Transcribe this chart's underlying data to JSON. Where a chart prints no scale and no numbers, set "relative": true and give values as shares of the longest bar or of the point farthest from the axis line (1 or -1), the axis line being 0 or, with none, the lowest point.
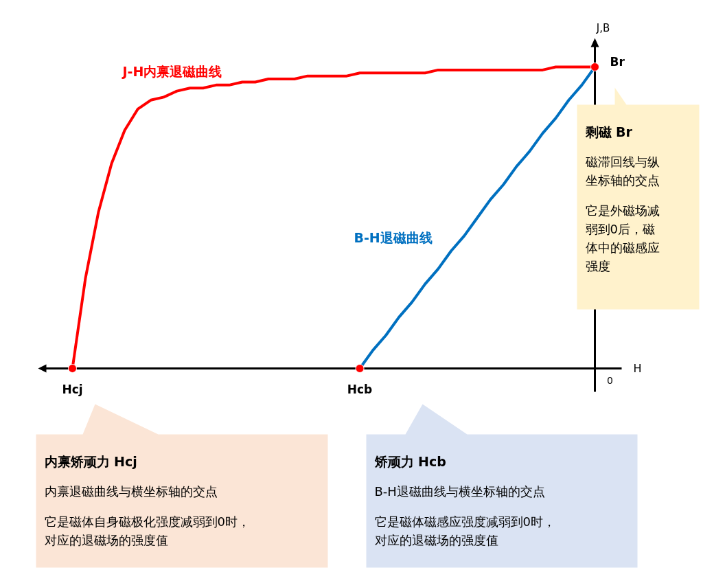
{
  "chart_data": {
    "type": "line",
    "relative": true,
    "xlabel": "H",
    "ylabel": "J,B",
    "grid": false,
    "legend": false,
    "categories": [
      "Hcj",
      null,
      null,
      null,
      null,
      null,
      null,
      null,
      null,
      null,
      null,
      null,
      null,
      null,
      null,
      null,
      null,
      null,
      null,
      null,
      null,
      null,
      "Hcb",
      null,
      null,
      null,
      null,
      null,
      null,
      null,
      null,
      null,
      null,
      null,
      null,
      null,
      null,
      null,
      null,
      null,
      null
    ],
    "series": [
      {
        "name": "J-H内禀退磁曲线",
        "color": "#ff0000",
        "values": [
          0,
          0.3,
          0.52,
          0.68,
          0.79,
          0.86,
          0.89,
          0.9,
          0.92,
          0.93,
          0.93,
          0.94,
          0.94,
          0.95,
          0.95,
          0.96,
          0.96,
          0.96,
          0.97,
          0.97,
          0.97,
          0.97,
          0.98,
          0.98,
          0.98,
          0.98,
          0.98,
          0.98,
          0.99,
          0.99,
          0.99,
          0.99,
          0.99,
          0.99,
          0.99,
          0.99,
          0.99,
          1,
          1,
          1,
          1
        ]
      },
      {
        "name": "B-H退磁曲线",
        "color": "#0070c0",
        "values": [
          null,
          null,
          null,
          null,
          null,
          null,
          null,
          null,
          null,
          null,
          null,
          null,
          null,
          null,
          null,
          null,
          null,
          null,
          null,
          null,
          null,
          null,
          0,
          0.06,
          0.11,
          0.17,
          0.22,
          0.28,
          0.33,
          0.39,
          0.44,
          0.5,
          0.56,
          0.61,
          0.67,
          0.72,
          0.78,
          0.83,
          0.89,
          0.94,
          1
        ]
      }
    ],
    "annotations": [
      "Br",
      "0",
      "剩磁 Br",
      "磁滞回线与纵坐标轴的交点",
      "它是外磁场减弱到0后，磁体中的磁感应强度",
      "内禀矫顽力 Hcj",
      "内禀退磁曲线与横坐标轴的交点",
      "它是磁体自身磁极化强度减弱到0时，对应的退磁场的强度值",
      "矫顽力 Hcb",
      "B-H退磁曲线与横坐标轴的交点",
      "它是磁体磁感应强度减弱到0时，对应的退磁场的强度值"
    ]
  }
}
